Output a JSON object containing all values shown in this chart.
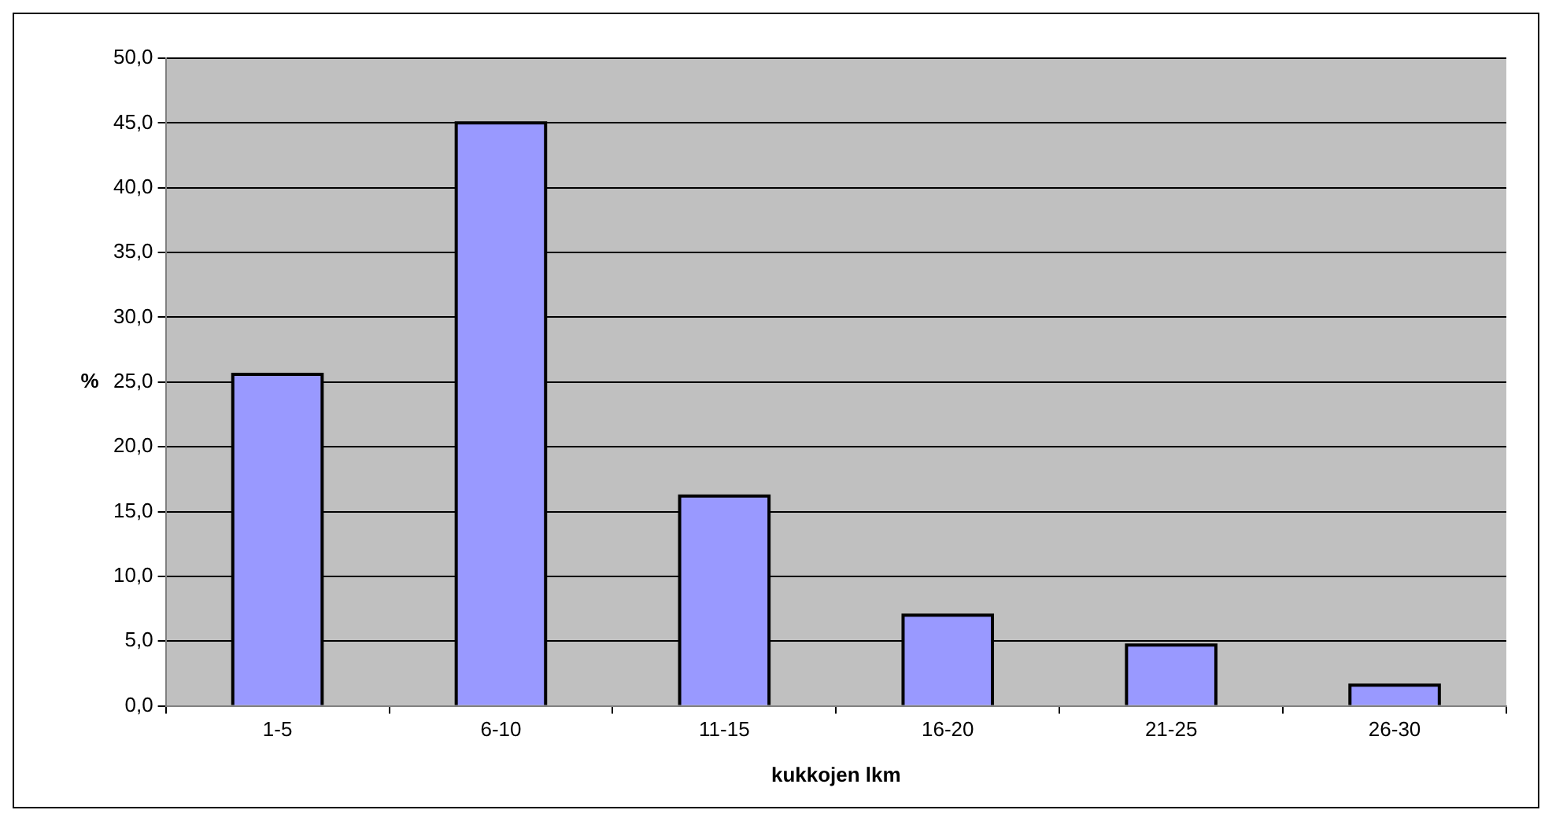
{
  "chart_data": {
    "type": "bar",
    "xlabel": "kukkojen lkm",
    "ylabel": "%",
    "categories": [
      "1-5",
      "6-10",
      "11-15",
      "16-20",
      "21-25",
      "26-30"
    ],
    "values": [
      25.6,
      45.0,
      16.2,
      7.0,
      4.7,
      1.6
    ],
    "color": "#9999ff",
    "ylim": [
      0,
      50
    ],
    "yticks": [
      {
        "value": 0,
        "label": "0,0"
      },
      {
        "value": 5,
        "label": "5,0"
      },
      {
        "value": 10,
        "label": "10,0"
      },
      {
        "value": 15,
        "label": "15,0"
      },
      {
        "value": 20,
        "label": "20,0"
      },
      {
        "value": 25,
        "label": "25,0"
      },
      {
        "value": 30,
        "label": "30,0"
      },
      {
        "value": 35,
        "label": "35,0"
      },
      {
        "value": 40,
        "label": "40,0"
      },
      {
        "value": 45,
        "label": "45,0"
      },
      {
        "value": 50,
        "label": "50,0"
      }
    ],
    "grid": "y",
    "legend": false
  }
}
